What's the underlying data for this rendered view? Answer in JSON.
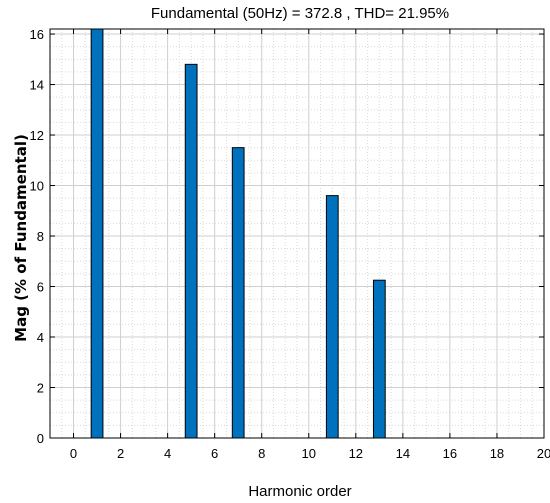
{
  "chart_data": {
    "type": "bar",
    "title": "Fundamental (50Hz) = 372.8 , THD= 21.95%",
    "xlabel": "Harmonic order",
    "ylabel": "Mag (% of Fundamental)",
    "xlim": [
      -1,
      20
    ],
    "ylim": [
      0,
      16.2
    ],
    "x_ticks": [
      0,
      2,
      4,
      6,
      8,
      10,
      12,
      14,
      16,
      18,
      20
    ],
    "y_ticks": [
      0,
      2,
      4,
      6,
      8,
      10,
      12,
      14,
      16
    ],
    "grid": true,
    "minor_grid": true,
    "bar_color": "#0072BD",
    "bar_width": 0.5,
    "x": [
      1,
      5,
      7,
      11,
      13
    ],
    "values": [
      16.2,
      14.8,
      11.5,
      9.6,
      6.25
    ]
  }
}
